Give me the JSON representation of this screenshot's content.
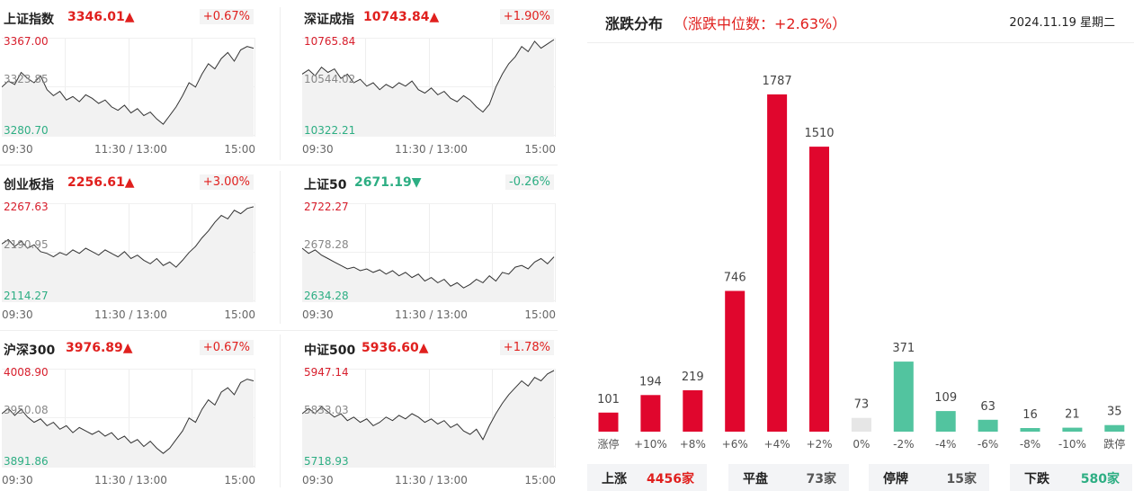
{
  "indices": [
    {
      "name": "上证指数",
      "value": "3346.01",
      "arrow": "▲",
      "change": "+0.67%",
      "dir": "up",
      "high": "3367.00",
      "mid": "3323.85",
      "low": "3280.70",
      "series": [
        0.45,
        0.52,
        0.48,
        0.62,
        0.55,
        0.5,
        0.58,
        0.42,
        0.35,
        0.4,
        0.3,
        0.34,
        0.28,
        0.36,
        0.32,
        0.26,
        0.3,
        0.22,
        0.18,
        0.24,
        0.15,
        0.2,
        0.12,
        0.16,
        0.08,
        0.02,
        0.12,
        0.22,
        0.35,
        0.5,
        0.45,
        0.6,
        0.72,
        0.66,
        0.78,
        0.85,
        0.75,
        0.88,
        0.92,
        0.9
      ]
    },
    {
      "name": "深证成指",
      "value": "10743.84",
      "arrow": "▲",
      "change": "+1.90%",
      "dir": "up",
      "high": "10765.84",
      "mid": "10544.02",
      "low": "10322.21",
      "series": [
        0.6,
        0.65,
        0.58,
        0.68,
        0.62,
        0.66,
        0.55,
        0.6,
        0.5,
        0.54,
        0.46,
        0.5,
        0.42,
        0.48,
        0.44,
        0.5,
        0.46,
        0.52,
        0.42,
        0.38,
        0.44,
        0.36,
        0.4,
        0.32,
        0.28,
        0.35,
        0.3,
        0.22,
        0.16,
        0.25,
        0.45,
        0.6,
        0.72,
        0.8,
        0.92,
        0.86,
        0.98,
        0.9,
        0.95,
        1.0
      ]
    },
    {
      "name": "创业板指",
      "value": "2256.61",
      "arrow": "▲",
      "change": "+3.00%",
      "dir": "up",
      "high": "2267.63",
      "mid": "2190.95",
      "low": "2114.27",
      "series": [
        0.55,
        0.6,
        0.52,
        0.58,
        0.5,
        0.54,
        0.46,
        0.44,
        0.4,
        0.45,
        0.42,
        0.48,
        0.44,
        0.5,
        0.46,
        0.42,
        0.48,
        0.44,
        0.4,
        0.46,
        0.38,
        0.42,
        0.36,
        0.32,
        0.38,
        0.3,
        0.34,
        0.28,
        0.36,
        0.45,
        0.52,
        0.62,
        0.7,
        0.8,
        0.88,
        0.84,
        0.94,
        0.9,
        0.96,
        0.98
      ]
    },
    {
      "name": "上证50",
      "value": "2671.19",
      "arrow": "▼",
      "change": "-0.26%",
      "dir": "down",
      "high": "2722.27",
      "mid": "2678.28",
      "low": "2634.28",
      "series": [
        0.5,
        0.44,
        0.48,
        0.42,
        0.38,
        0.34,
        0.3,
        0.26,
        0.28,
        0.24,
        0.26,
        0.22,
        0.25,
        0.2,
        0.24,
        0.18,
        0.22,
        0.16,
        0.2,
        0.12,
        0.16,
        0.1,
        0.14,
        0.06,
        0.1,
        0.04,
        0.08,
        0.14,
        0.1,
        0.18,
        0.12,
        0.22,
        0.2,
        0.28,
        0.3,
        0.26,
        0.34,
        0.38,
        0.32,
        0.4
      ]
    },
    {
      "name": "沪深300",
      "value": "3976.89",
      "arrow": "▲",
      "change": "+0.67%",
      "dir": "up",
      "high": "4008.90",
      "mid": "3950.08",
      "low": "3891.86",
      "series": [
        0.5,
        0.56,
        0.48,
        0.55,
        0.46,
        0.4,
        0.44,
        0.36,
        0.4,
        0.32,
        0.36,
        0.28,
        0.34,
        0.3,
        0.26,
        0.3,
        0.24,
        0.28,
        0.2,
        0.24,
        0.16,
        0.2,
        0.12,
        0.18,
        0.1,
        0.04,
        0.1,
        0.2,
        0.3,
        0.45,
        0.4,
        0.55,
        0.66,
        0.6,
        0.75,
        0.8,
        0.72,
        0.86,
        0.9,
        0.88
      ]
    },
    {
      "name": "中证500",
      "value": "5936.60",
      "arrow": "▲",
      "change": "+1.78%",
      "dir": "up",
      "high": "5947.14",
      "mid": "5833.03",
      "low": "5718.93",
      "series": [
        0.5,
        0.56,
        0.5,
        0.58,
        0.52,
        0.46,
        0.5,
        0.42,
        0.46,
        0.4,
        0.44,
        0.36,
        0.4,
        0.46,
        0.42,
        0.48,
        0.44,
        0.5,
        0.46,
        0.4,
        0.44,
        0.38,
        0.42,
        0.34,
        0.38,
        0.3,
        0.26,
        0.32,
        0.2,
        0.36,
        0.5,
        0.62,
        0.72,
        0.8,
        0.88,
        0.82,
        0.92,
        0.88,
        0.96,
        1.0
      ]
    }
  ],
  "time_axis": [
    "09:30",
    "11:30 / 13:00",
    "15:00"
  ],
  "distribution": {
    "title": "涨跌分布",
    "median": "（涨跌中位数：+2.63%）",
    "date": "2024.11.19 星期二",
    "colors": {
      "up": "#e0062d",
      "flat": "#e6e6e6",
      "down": "#52c49f"
    },
    "chart_data": {
      "type": "bar",
      "categories": [
        "涨停",
        "+10%",
        "+8%",
        "+6%",
        "+4%",
        "+2%",
        "0%",
        "-2%",
        "-4%",
        "-6%",
        "-8%",
        "-10%",
        "跌停"
      ],
      "values": [
        101,
        194,
        219,
        746,
        1787,
        1510,
        73,
        371,
        109,
        63,
        16,
        21,
        35
      ],
      "kind": [
        "up",
        "up",
        "up",
        "up",
        "up",
        "up",
        "flat",
        "down",
        "down",
        "down",
        "down",
        "down",
        "down"
      ],
      "ylim": [
        0,
        1787
      ]
    },
    "summary": [
      {
        "label": "上涨",
        "value": "4456家",
        "color": "up"
      },
      {
        "label": "平盘",
        "value": "73家",
        "color": "gray"
      },
      {
        "label": "停牌",
        "value": "15家",
        "color": "gray"
      },
      {
        "label": "下跌",
        "value": "580家",
        "color": "down"
      }
    ]
  }
}
